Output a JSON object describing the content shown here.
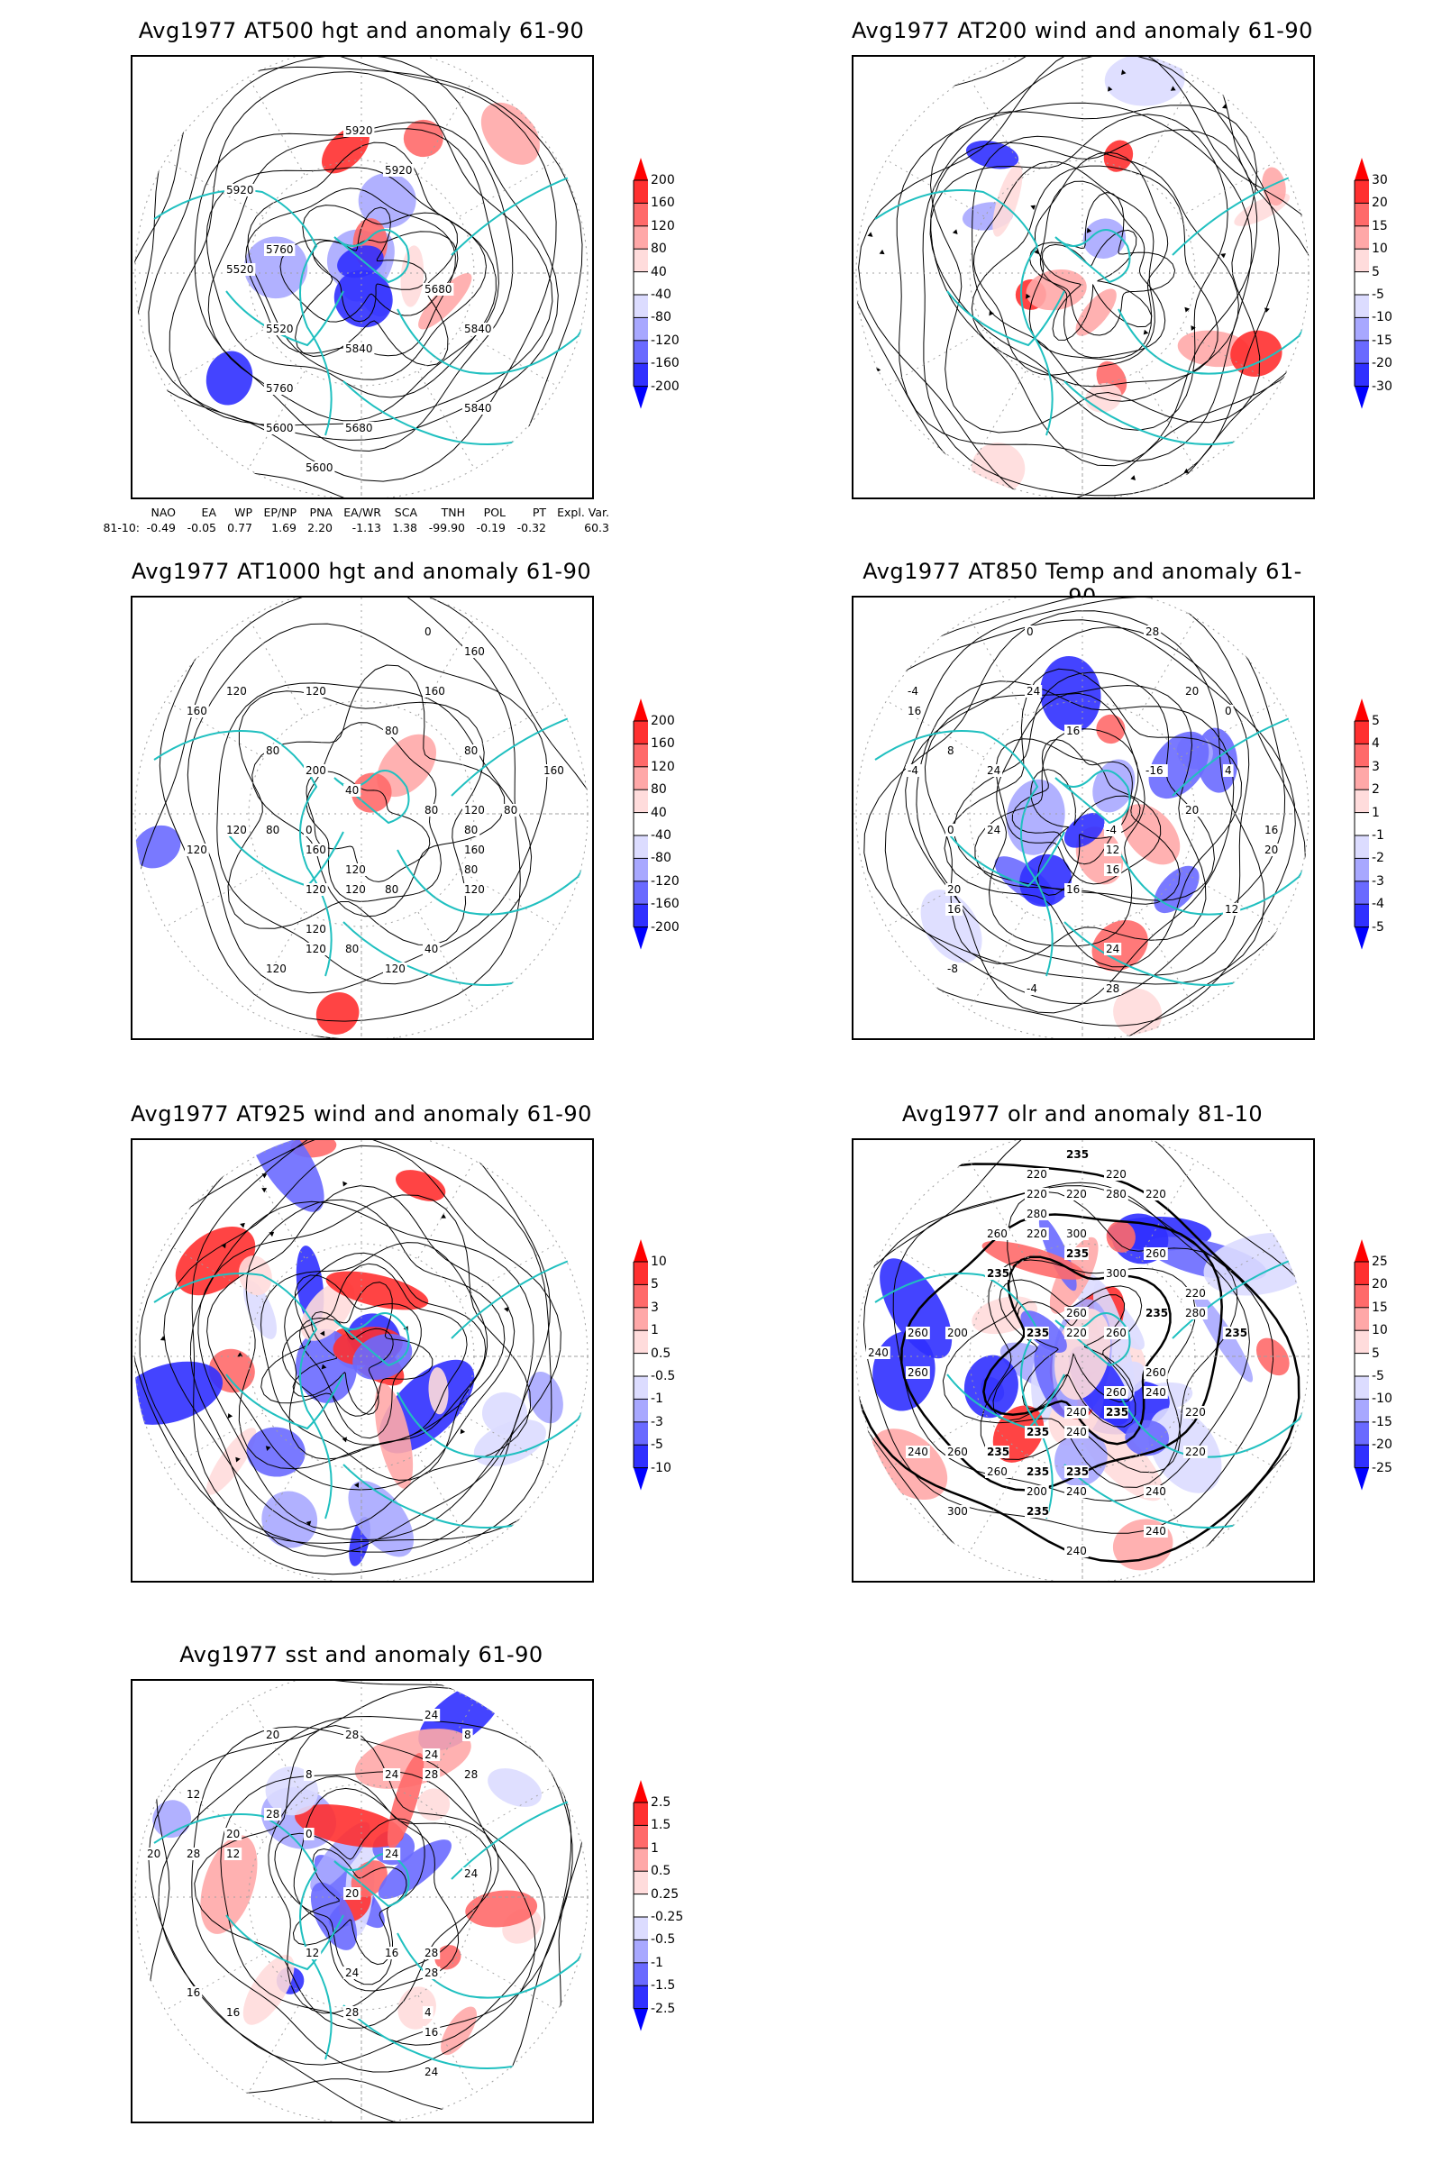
{
  "colors": {
    "coastline": "#20c0c0",
    "contour": "#000000",
    "grid": "#a0a0a0",
    "shading": [
      "#0000ff",
      "#3030ff",
      "#6a6aff",
      "#a8a8ff",
      "#dcdcff",
      "#ffffff",
      "#ffdcdc",
      "#ffa8a8",
      "#ff6a6a",
      "#ff3030",
      "#ff0000"
    ]
  },
  "panels": [
    {
      "id": "at500-hgt",
      "title": "Avg1977 AT500 hgt and anomaly 61-90",
      "colorbar": [
        "200",
        "160",
        "120",
        "80",
        "40",
        "-40",
        "-80",
        "-120",
        "-160",
        "-200"
      ],
      "contour_labels": [
        "5840",
        "5760",
        "5680",
        "5600",
        "5520",
        "5520",
        "5920",
        "5920",
        "5600",
        "5680",
        "5760",
        "5840",
        "5920",
        "5840"
      ]
    },
    {
      "id": "at200-wind",
      "title": "Avg1977 AT200 wind and anomaly 61-90",
      "colorbar": [
        "30",
        "20",
        "15",
        "10",
        "5",
        "-5",
        "-10",
        "-15",
        "-20",
        "-30"
      ],
      "contour_labels": []
    },
    {
      "id": "at1000-hgt",
      "title": "Avg1977 AT1000 hgt and anomaly 61-90",
      "colorbar": [
        "200",
        "160",
        "120",
        "80",
        "40",
        "-40",
        "-80",
        "-120",
        "-160",
        "-200"
      ],
      "contour_labels": [
        "80",
        "120",
        "160",
        "120",
        "80",
        "160",
        "80",
        "120",
        "120",
        "120",
        "160",
        "80",
        "80",
        "80",
        "160",
        "160",
        "120",
        "80",
        "80",
        "120",
        "40",
        "80",
        "120",
        "200",
        "160",
        "120",
        "80",
        "120",
        "120",
        "120",
        "40",
        "0",
        "0",
        "120"
      ]
    },
    {
      "id": "at850-temp",
      "title": "Avg1977 AT850 Temp and anomaly 61-90",
      "colorbar": [
        "5",
        "4",
        "3",
        "2",
        "1",
        "-1",
        "-2",
        "-3",
        "-4",
        "-5"
      ],
      "contour_labels": [
        "16",
        "16",
        "12",
        "-4",
        "-8",
        "-4",
        "24",
        "20",
        "-4",
        "0",
        "-4",
        "0",
        "4",
        "8",
        "12",
        "16",
        "20",
        "16",
        "20",
        "24",
        "24",
        "28",
        "28",
        "24",
        "20",
        "16",
        "16",
        "-16",
        "0"
      ]
    },
    {
      "id": "at925-wind",
      "title": "Avg1977 AT925 wind and anomaly 61-90",
      "colorbar": [
        "10",
        "5",
        "3",
        "1",
        "0.5",
        "-0.5",
        "-1",
        "-3",
        "-5",
        "-10"
      ],
      "contour_labels": []
    },
    {
      "id": "olr",
      "title": "Avg1977 olr and anomaly 81-10",
      "colorbar": [
        "25",
        "20",
        "15",
        "10",
        "5",
        "-5",
        "-10",
        "-15",
        "-20",
        "-25"
      ],
      "contour_labels": [
        "235",
        "235",
        "240",
        "240",
        "260",
        "280",
        "235",
        "260",
        "220",
        "235",
        "260",
        "260",
        "220",
        "220",
        "260",
        "235",
        "240",
        "235",
        "220",
        "240",
        "240",
        "235",
        "240",
        "220",
        "220",
        "260",
        "280",
        "260",
        "240",
        "220",
        "220",
        "235",
        "235",
        "240",
        "200",
        "235",
        "220",
        "200",
        "300",
        "300",
        "260",
        "300",
        "260",
        "280",
        "235",
        "235",
        "220",
        "240",
        "260"
      ]
    },
    {
      "id": "sst",
      "title": "Avg1977 sst and anomaly 61-90",
      "colorbar": [
        "2.5",
        "1.5",
        "1",
        "0.5",
        "0.25",
        "-0.25",
        "-0.5",
        "-1",
        "-1.5",
        "-2.5"
      ],
      "contour_labels": [
        "28",
        "28",
        "24",
        "24",
        "20",
        "16",
        "20",
        "16",
        "12",
        "12",
        "24",
        "28",
        "24",
        "8",
        "4",
        "0",
        "20",
        "24",
        "8",
        "12",
        "16",
        "20",
        "16",
        "28",
        "28",
        "28",
        "28",
        "24",
        "24",
        "28"
      ]
    }
  ],
  "teleconnection_table": {
    "row_label": "81-10:",
    "headers": [
      "NAO",
      "EA",
      "WP",
      "EP/NP",
      "PNA",
      "EA/WR",
      "SCA",
      "TNH",
      "POL",
      "PT",
      "Expl. Var."
    ],
    "values": [
      "-0.49",
      "-0.05",
      "0.77",
      "1.69",
      "2.20",
      "-1.13",
      "1.38",
      "-99.90",
      "-0.19",
      "-0.32",
      "60.3"
    ]
  }
}
